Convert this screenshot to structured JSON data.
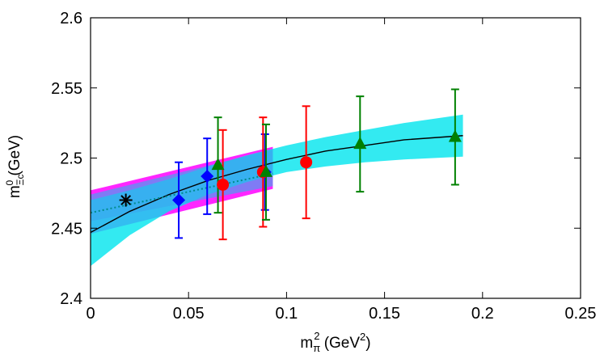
{
  "chart_data": {
    "type": "scatter",
    "xlabel": {
      "base": "m",
      "sub": "π",
      "sup": "2",
      "unit_open": " (GeV",
      "unit_sup": "2",
      "unit_close": ")"
    },
    "ylabel": {
      "base": "m",
      "sub": "Ξc",
      "sup": "0",
      "unit": " (GeV)"
    },
    "xlim": [
      0,
      0.25
    ],
    "ylim": [
      2.4,
      2.6
    ],
    "xticks": [
      0,
      0.05,
      0.1,
      0.15,
      0.2,
      0.25
    ],
    "xtick_labels": [
      "0",
      "0.05",
      "0.1",
      "0.15",
      "0.2",
      "0.25"
    ],
    "yticks": [
      2.4,
      2.45,
      2.5,
      2.55,
      2.6
    ],
    "ytick_labels": [
      "2.4",
      "2.45",
      "2.5",
      "2.55",
      "2.6"
    ],
    "grid": false,
    "series": [
      {
        "marker": "diamond",
        "color": "#0000ff",
        "points": [
          {
            "x": 0.045,
            "y": 2.47,
            "err": 0.027
          },
          {
            "x": 0.0595,
            "y": 2.487,
            "err": 0.027
          },
          {
            "x": 0.089,
            "y": 2.49,
            "err": 0.027
          }
        ]
      },
      {
        "marker": "circle",
        "color": "#ff0000",
        "points": [
          {
            "x": 0.0675,
            "y": 2.481,
            "err": 0.039
          },
          {
            "x": 0.088,
            "y": 2.49,
            "err": 0.039
          },
          {
            "x": 0.11,
            "y": 2.497,
            "err": 0.04
          }
        ]
      },
      {
        "marker": "triangle",
        "color": "#008000",
        "points": [
          {
            "x": 0.065,
            "y": 2.495,
            "err": 0.034
          },
          {
            "x": 0.0895,
            "y": 2.49,
            "err": 0.034
          },
          {
            "x": 0.1375,
            "y": 2.51,
            "err": 0.034
          },
          {
            "x": 0.186,
            "y": 2.515,
            "err": 0.034
          }
        ]
      }
    ],
    "physical_point": {
      "marker": "star",
      "color": "#000000",
      "x": 0.018,
      "y": 2.47
    },
    "fit_solid": {
      "color": "#000000",
      "x": [
        0,
        0.02,
        0.04,
        0.06,
        0.08,
        0.1,
        0.12,
        0.14,
        0.16,
        0.19
      ],
      "y": [
        2.447,
        2.462,
        2.474,
        2.484,
        2.492,
        2.499,
        2.505,
        2.509,
        2.513,
        2.516
      ]
    },
    "fit_dotted": {
      "color": "#008b8b",
      "x": [
        0,
        0.02,
        0.04,
        0.06,
        0.08,
        0.093
      ],
      "y": [
        2.461,
        2.467,
        2.473,
        2.479,
        2.485,
        2.489
      ]
    },
    "band_cyan": {
      "color": "#00e5ee",
      "x": [
        0,
        0.02,
        0.04,
        0.06,
        0.08,
        0.1,
        0.12,
        0.14,
        0.16,
        0.19
      ],
      "lower": [
        2.423,
        2.445,
        2.462,
        2.474,
        2.483,
        2.49,
        2.494,
        2.497,
        2.499,
        2.501
      ],
      "upper": [
        2.47,
        2.477,
        2.485,
        2.494,
        2.502,
        2.509,
        2.515,
        2.52,
        2.525,
        2.531
      ]
    },
    "band_magenta": {
      "color": "#ff00ff",
      "x": [
        0,
        0.093
      ],
      "lower": [
        2.446,
        2.478
      ],
      "upper": [
        2.477,
        2.508
      ]
    },
    "band_blue": {
      "color": "#3aa9f0",
      "x": [
        0,
        0.093
      ],
      "lower": [
        2.455,
        2.48
      ],
      "upper": [
        2.474,
        2.506
      ]
    }
  }
}
